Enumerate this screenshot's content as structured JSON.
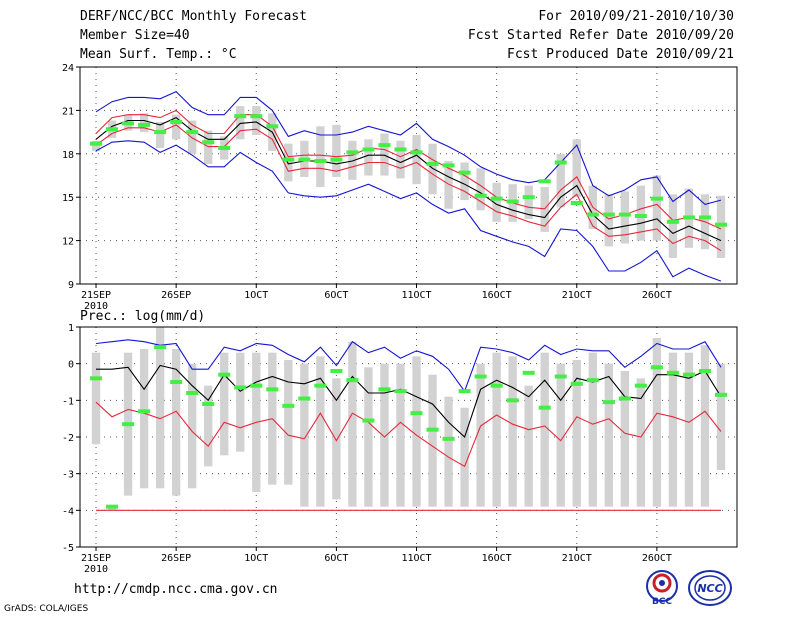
{
  "header": {
    "title": "DERF/NCC/BCC Monthly Forecast",
    "member_size": "Member Size=40",
    "variable": "Mean Surf. Temp.: °C",
    "period": "For 2010/09/21-2010/10/30",
    "started": "Fcst Started Refer Date 2010/09/20",
    "produced": "Fcst Produced Date 2010/09/21"
  },
  "footer": {
    "url": "http://cmdp.ncc.cma.gov.cn",
    "credit": "GrADS: COLA/IGES",
    "logo_left_text": "BCC",
    "logo_right_text": "NCC"
  },
  "colors": {
    "ensemble_mean": "#000000",
    "spread_inner": "#e8283c",
    "spread_outer": "#1414d2",
    "member_marker": "#44ee44",
    "box": "#d2d2d2",
    "grid": "#555555"
  },
  "chart_data": [
    {
      "type": "line",
      "title": "Mean Surf. Temp.: °C",
      "xlabel": "",
      "ylabel": "°C",
      "ylim": [
        9,
        24
      ],
      "yticks": [
        9,
        12,
        15,
        18,
        21,
        24
      ],
      "xticks": [
        {
          "day": 1,
          "label": "21SEP",
          "sub": "2010"
        },
        {
          "day": 6,
          "label": "26SEP"
        },
        {
          "day": 11,
          "label": "1OCT"
        },
        {
          "day": 16,
          "label": "6OCT"
        },
        {
          "day": 21,
          "label": "11OCT"
        },
        {
          "day": 26,
          "label": "16OCT"
        },
        {
          "day": 31,
          "label": "21OCT"
        },
        {
          "day": 36,
          "label": "26OCT"
        }
      ],
      "xlim": [
        0,
        41
      ],
      "x": [
        1,
        2,
        3,
        4,
        5,
        6,
        7,
        8,
        9,
        10,
        11,
        12,
        13,
        14,
        15,
        16,
        17,
        18,
        19,
        20,
        21,
        22,
        23,
        24,
        25,
        26,
        27,
        28,
        29,
        30,
        31,
        32,
        33,
        34,
        35,
        36,
        37,
        38,
        39,
        40
      ],
      "series": [
        {
          "name": "ensemble mean",
          "values": [
            19.0,
            19.9,
            20.3,
            20.3,
            20.0,
            20.5,
            19.6,
            19.0,
            19.0,
            20.1,
            20.2,
            19.5,
            17.3,
            17.5,
            17.5,
            17.3,
            17.5,
            17.9,
            17.9,
            17.4,
            17.9,
            17.0,
            16.4,
            15.9,
            15.3,
            14.5,
            14.1,
            13.8,
            13.6,
            15.0,
            15.8,
            13.8,
            12.8,
            13.0,
            13.2,
            13.5,
            12.5,
            13.0,
            12.5,
            12.0
          ]
        },
        {
          "name": "upper inner bound",
          "values": [
            19.4,
            20.5,
            20.7,
            20.7,
            20.5,
            21.0,
            20.0,
            19.4,
            19.4,
            20.7,
            20.7,
            19.9,
            17.8,
            17.9,
            17.9,
            17.8,
            17.9,
            18.4,
            18.3,
            17.8,
            18.3,
            17.6,
            17.0,
            16.5,
            15.8,
            15.0,
            14.6,
            14.3,
            14.2,
            15.5,
            16.4,
            14.3,
            13.5,
            13.8,
            14.2,
            14.5,
            13.4,
            13.6,
            13.3,
            12.8
          ]
        },
        {
          "name": "lower inner bound",
          "values": [
            18.6,
            19.4,
            19.8,
            19.8,
            19.5,
            20.0,
            19.1,
            18.5,
            18.5,
            19.6,
            19.7,
            19.0,
            16.8,
            17.0,
            17.0,
            16.8,
            17.1,
            17.4,
            17.4,
            17.0,
            17.4,
            16.6,
            15.9,
            15.4,
            14.7,
            14.0,
            13.7,
            13.3,
            13.0,
            14.3,
            15.2,
            13.0,
            12.3,
            12.4,
            12.6,
            12.8,
            11.8,
            12.3,
            12.0,
            11.3
          ]
        },
        {
          "name": "upper outer bound",
          "values": [
            20.9,
            21.6,
            21.9,
            21.9,
            21.8,
            22.3,
            21.2,
            20.7,
            20.7,
            21.9,
            21.9,
            21.0,
            19.2,
            19.6,
            19.3,
            19.3,
            19.5,
            19.9,
            19.6,
            19.3,
            20.1,
            19.0,
            18.5,
            17.9,
            17.1,
            16.6,
            16.2,
            16.0,
            16.2,
            17.4,
            18.6,
            15.8,
            15.1,
            15.5,
            16.2,
            16.4,
            14.7,
            15.5,
            14.5,
            14.8
          ]
        },
        {
          "name": "lower outer bound",
          "values": [
            18.2,
            18.8,
            18.9,
            18.8,
            18.1,
            18.6,
            17.9,
            17.1,
            17.1,
            18.1,
            17.4,
            16.8,
            15.3,
            15.1,
            15.0,
            15.1,
            15.5,
            15.9,
            15.4,
            14.9,
            15.3,
            14.5,
            13.9,
            14.2,
            12.7,
            12.3,
            11.9,
            11.6,
            10.9,
            12.8,
            12.7,
            11.6,
            9.9,
            9.9,
            10.5,
            11.3,
            9.5,
            10.1,
            9.6,
            9.2
          ]
        }
      ],
      "boxes": [
        {
          "lo": 18.2,
          "hi": 18.9
        },
        {
          "lo": 19.1,
          "hi": 20.3
        },
        {
          "lo": 19.6,
          "hi": 20.7
        },
        {
          "lo": 19.5,
          "hi": 20.8
        },
        {
          "lo": 18.4,
          "hi": 20.2
        },
        {
          "lo": 19.0,
          "hi": 20.7
        },
        {
          "lo": 18.0,
          "hi": 20.3
        },
        {
          "lo": 17.3,
          "hi": 19.6
        },
        {
          "lo": 17.6,
          "hi": 19.2
        },
        {
          "lo": 19.0,
          "hi": 21.3
        },
        {
          "lo": 19.3,
          "hi": 21.3
        },
        {
          "lo": 18.2,
          "hi": 20.8
        },
        {
          "lo": 16.1,
          "hi": 18.7
        },
        {
          "lo": 16.4,
          "hi": 18.9
        },
        {
          "lo": 15.7,
          "hi": 19.9
        },
        {
          "lo": 16.4,
          "hi": 20.0
        },
        {
          "lo": 16.2,
          "hi": 18.9
        },
        {
          "lo": 16.5,
          "hi": 19.0
        },
        {
          "lo": 16.5,
          "hi": 19.4
        },
        {
          "lo": 16.3,
          "hi": 18.9
        },
        {
          "lo": 15.9,
          "hi": 19.3
        },
        {
          "lo": 15.2,
          "hi": 18.7
        },
        {
          "lo": 14.2,
          "hi": 17.5
        },
        {
          "lo": 14.8,
          "hi": 17.4
        },
        {
          "lo": 14.1,
          "hi": 17.0
        },
        {
          "lo": 13.3,
          "hi": 16.0
        },
        {
          "lo": 13.3,
          "hi": 15.9
        },
        {
          "lo": 13.5,
          "hi": 15.8
        },
        {
          "lo": 12.6,
          "hi": 15.7
        },
        {
          "lo": 14.3,
          "hi": 18.0
        },
        {
          "lo": 15.0,
          "hi": 19.0
        },
        {
          "lo": 12.8,
          "hi": 15.8
        },
        {
          "lo": 11.6,
          "hi": 15.2
        },
        {
          "lo": 11.8,
          "hi": 15.4
        },
        {
          "lo": 12.0,
          "hi": 15.8
        },
        {
          "lo": 12.0,
          "hi": 16.5
        },
        {
          "lo": 10.8,
          "hi": 15.2
        },
        {
          "lo": 11.5,
          "hi": 15.6
        },
        {
          "lo": 11.4,
          "hi": 15.2
        },
        {
          "lo": 10.8,
          "hi": 15.1
        }
      ],
      "markers": [
        18.7,
        19.7,
        20.1,
        20.0,
        19.5,
        20.2,
        19.5,
        18.8,
        18.4,
        20.6,
        20.6,
        19.9,
        17.6,
        17.6,
        17.5,
        17.6,
        18.1,
        18.3,
        18.6,
        18.3,
        18.1,
        17.3,
        17.2,
        16.7,
        15.1,
        14.9,
        14.7,
        15.0,
        16.1,
        17.4,
        14.6,
        13.8,
        13.8,
        13.8,
        13.7,
        14.9,
        13.3,
        13.6,
        13.6,
        13.1
      ]
    },
    {
      "type": "line",
      "title": "Prec.: log(mm/d)",
      "xlabel": "",
      "ylabel": "log(mm/d)",
      "ylim": [
        -5,
        1
      ],
      "yticks": [
        -5,
        -4,
        -3,
        -2,
        -1,
        0,
        1
      ],
      "xticks": [
        {
          "day": 1,
          "label": "21SEP",
          "sub": "2010"
        },
        {
          "day": 6,
          "label": "26SEP"
        },
        {
          "day": 11,
          "label": "1OCT"
        },
        {
          "day": 16,
          "label": "6OCT"
        },
        {
          "day": 21,
          "label": "11OCT"
        },
        {
          "day": 26,
          "label": "16OCT"
        },
        {
          "day": 31,
          "label": "21OCT"
        },
        {
          "day": 36,
          "label": "26OCT"
        }
      ],
      "xlim": [
        0,
        41
      ],
      "x": [
        1,
        2,
        3,
        4,
        5,
        6,
        7,
        8,
        9,
        10,
        11,
        12,
        13,
        14,
        15,
        16,
        17,
        18,
        19,
        20,
        21,
        22,
        23,
        24,
        25,
        26,
        27,
        28,
        29,
        30,
        31,
        32,
        33,
        34,
        35,
        36,
        37,
        38,
        39,
        40
      ],
      "series": [
        {
          "name": "ensemble mean",
          "values": [
            -0.15,
            -0.15,
            -0.1,
            -0.7,
            -0.05,
            -0.15,
            -0.6,
            -1.0,
            -0.3,
            -0.75,
            -0.5,
            -0.35,
            -0.5,
            -0.55,
            -0.4,
            -1.0,
            -0.35,
            -0.8,
            -0.8,
            -0.7,
            -0.9,
            -1.1,
            -1.6,
            -2.0,
            -0.7,
            -0.45,
            -0.65,
            -0.9,
            -0.45,
            -1.0,
            -0.4,
            -0.5,
            -0.35,
            -0.9,
            -0.95,
            -0.3,
            -0.3,
            -0.4,
            -0.2,
            -0.9
          ]
        },
        {
          "name": "upper bound",
          "values": [
            0.55,
            0.6,
            0.65,
            0.6,
            0.5,
            0.55,
            -0.15,
            -0.15,
            0.45,
            0.35,
            0.55,
            0.5,
            0.25,
            0.05,
            0.45,
            -0.05,
            0.6,
            0.3,
            0.45,
            0.15,
            0.35,
            0.2,
            -0.15,
            -0.75,
            0.45,
            0.4,
            0.3,
            0.1,
            0.5,
            0.25,
            0.4,
            0.35,
            0.35,
            -0.1,
            0.2,
            0.55,
            0.4,
            0.4,
            0.6,
            -0.1
          ]
        },
        {
          "name": "lower bound",
          "values": [
            -1.05,
            -1.45,
            -1.25,
            -1.35,
            -1.5,
            -1.3,
            -1.85,
            -2.25,
            -1.6,
            -1.75,
            -1.6,
            -1.5,
            -1.95,
            -2.05,
            -1.35,
            -2.1,
            -1.35,
            -1.6,
            -2.0,
            -1.6,
            -1.95,
            -2.25,
            -2.55,
            -2.8,
            -1.7,
            -1.4,
            -1.65,
            -1.8,
            -1.7,
            -2.1,
            -1.45,
            -1.65,
            -1.5,
            -1.9,
            -2.0,
            -1.35,
            -1.45,
            -1.6,
            -1.3,
            -1.85
          ]
        },
        {
          "name": "minimum",
          "values": [
            -4,
            -4,
            -4,
            -4,
            -4,
            -4,
            -4,
            -4,
            -4,
            -4,
            -4,
            -4,
            -4,
            -4,
            -4,
            -4,
            -4,
            -4,
            -4,
            -4,
            -4,
            -4,
            -4,
            -4,
            -4,
            -4,
            -4,
            -4,
            -4,
            -4,
            -4,
            -4,
            -4,
            -4,
            -4,
            -4,
            -4,
            -4,
            -4,
            -4
          ]
        }
      ],
      "boxes": [
        {
          "lo": -2.2,
          "hi": 0.3
        },
        {
          "lo": -4.0,
          "hi": -3.9
        },
        {
          "lo": -3.6,
          "hi": 0.3
        },
        {
          "lo": -3.4,
          "hi": 0.4
        },
        {
          "lo": -3.4,
          "hi": 1.0
        },
        {
          "lo": -3.6,
          "hi": 0.4
        },
        {
          "lo": -3.4,
          "hi": 0.0
        },
        {
          "lo": -2.8,
          "hi": -0.6
        },
        {
          "lo": -2.5,
          "hi": 0.3
        },
        {
          "lo": -2.4,
          "hi": 0.3
        },
        {
          "lo": -3.5,
          "hi": 0.3
        },
        {
          "lo": -3.3,
          "hi": 0.3
        },
        {
          "lo": -3.3,
          "hi": 0.1
        },
        {
          "lo": -3.9,
          "hi": 0.0
        },
        {
          "lo": -3.9,
          "hi": 0.2
        },
        {
          "lo": -3.7,
          "hi": -0.4
        },
        {
          "lo": -3.9,
          "hi": 0.6
        },
        {
          "lo": -3.9,
          "hi": -0.1
        },
        {
          "lo": -3.9,
          "hi": 0.0
        },
        {
          "lo": -3.9,
          "hi": 0.0
        },
        {
          "lo": -3.9,
          "hi": 0.2
        },
        {
          "lo": -3.9,
          "hi": -0.3
        },
        {
          "lo": -3.9,
          "hi": -0.9
        },
        {
          "lo": -3.9,
          "hi": -1.2
        },
        {
          "lo": -3.9,
          "hi": 0.0
        },
        {
          "lo": -3.9,
          "hi": 0.3
        },
        {
          "lo": -3.9,
          "hi": 0.2
        },
        {
          "lo": -3.9,
          "hi": -0.6
        },
        {
          "lo": -3.9,
          "hi": 0.3
        },
        {
          "lo": -3.9,
          "hi": 0.0
        },
        {
          "lo": -3.9,
          "hi": 0.1
        },
        {
          "lo": -3.9,
          "hi": 0.3
        },
        {
          "lo": -3.9,
          "hi": 0.0
        },
        {
          "lo": -3.9,
          "hi": -0.2
        },
        {
          "lo": -3.9,
          "hi": -0.4
        },
        {
          "lo": -3.9,
          "hi": 0.7
        },
        {
          "lo": -3.9,
          "hi": 0.3
        },
        {
          "lo": -3.9,
          "hi": 0.3
        },
        {
          "lo": -3.9,
          "hi": 0.5
        },
        {
          "lo": -2.9,
          "hi": 0.0
        }
      ],
      "markers": [
        -0.4,
        -3.9,
        -1.65,
        -1.3,
        0.45,
        -0.5,
        -0.8,
        -1.1,
        -0.3,
        -0.65,
        -0.6,
        -0.7,
        -1.15,
        -0.95,
        -0.6,
        -0.2,
        -0.45,
        -1.55,
        -0.7,
        -0.75,
        -1.35,
        -1.8,
        -2.05,
        -0.75,
        -0.35,
        -0.6,
        -1.0,
        -0.25,
        -1.2,
        -0.35,
        -0.55,
        -0.45,
        -1.05,
        -0.95,
        -0.6,
        -0.1,
        -0.25,
        -0.3,
        -0.2,
        -0.85
      ]
    }
  ]
}
